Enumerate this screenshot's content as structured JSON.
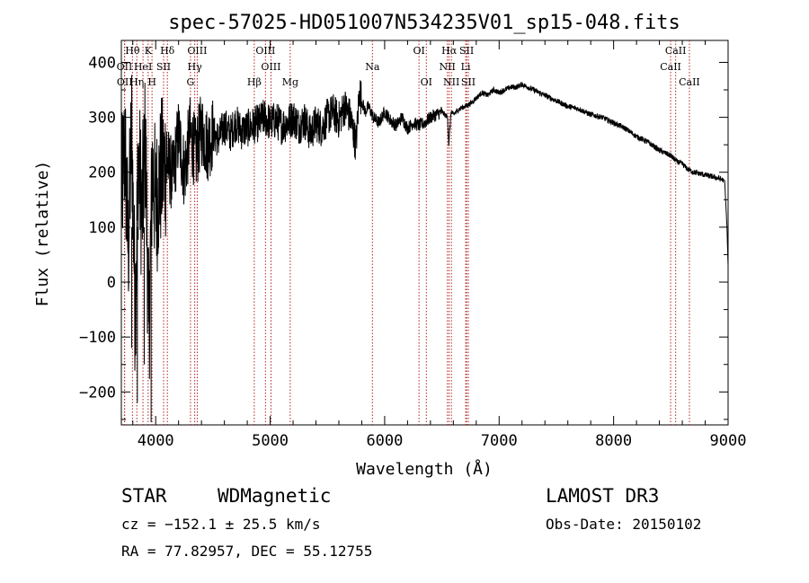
{
  "chart_data": {
    "type": "line",
    "title": "spec-57025-HD051007N534235V01_sp15-048.fits",
    "xlabel": "Wavelength (Å)",
    "ylabel": "Flux (relative)",
    "xlim": [
      3700,
      9000
    ],
    "ylim": [
      -260,
      440
    ],
    "xticks": [
      4000,
      5000,
      6000,
      7000,
      8000,
      9000
    ],
    "yticks": [
      -200,
      -100,
      0,
      100,
      200,
      300,
      400
    ],
    "series": [
      {
        "name": "spectrum",
        "x": [
          3700,
          3730,
          3760,
          3790,
          3820,
          3850,
          3880,
          3910,
          3940,
          3970,
          4000,
          4050,
          4100,
          4150,
          4200,
          4250,
          4300,
          4350,
          4400,
          4450,
          4500,
          4550,
          4600,
          4650,
          4700,
          4750,
          4800,
          4850,
          4900,
          4950,
          5000,
          5050,
          5100,
          5150,
          5200,
          5250,
          5300,
          5350,
          5400,
          5450,
          5500,
          5550,
          5600,
          5650,
          5700,
          5750,
          5780,
          5800,
          5830,
          5860,
          5900,
          5950,
          6000,
          6050,
          6100,
          6150,
          6200,
          6250,
          6300,
          6350,
          6400,
          6450,
          6500,
          6550,
          6560,
          6580,
          6600,
          6650,
          6700,
          6750,
          6800,
          6850,
          6900,
          6950,
          7000,
          7050,
          7100,
          7150,
          7200,
          7250,
          7300,
          7350,
          7400,
          7450,
          7500,
          7600,
          7700,
          7800,
          7900,
          8000,
          8100,
          8200,
          8300,
          8400,
          8500,
          8550,
          8600,
          8650,
          8700,
          8800,
          8900,
          8970,
          8990,
          9000
        ],
        "y": [
          150,
          250,
          60,
          280,
          -50,
          230,
          120,
          260,
          -100,
          210,
          140,
          200,
          220,
          190,
          270,
          200,
          270,
          230,
          280,
          250,
          270,
          260,
          285,
          270,
          290,
          275,
          280,
          285,
          290,
          300,
          290,
          295,
          285,
          290,
          300,
          285,
          295,
          270,
          290,
          280,
          300,
          310,
          295,
          320,
          300,
          250,
          350,
          330,
          310,
          320,
          300,
          290,
          310,
          295,
          285,
          300,
          280,
          290,
          285,
          290,
          300,
          305,
          310,
          300,
          250,
          310,
          305,
          315,
          320,
          325,
          335,
          345,
          340,
          350,
          345,
          350,
          355,
          355,
          360,
          355,
          350,
          345,
          340,
          335,
          330,
          320,
          315,
          305,
          300,
          290,
          280,
          265,
          255,
          240,
          230,
          220,
          215,
          205,
          200,
          195,
          190,
          185,
          100,
          30
        ]
      }
    ],
    "spectral_lines": [
      {
        "label": "Hθ",
        "wavelength": 3797,
        "row": 1
      },
      {
        "label": "K",
        "wavelength": 3934,
        "row": 1
      },
      {
        "label": "Hδ",
        "wavelength": 4102,
        "row": 1
      },
      {
        "label": "OIII",
        "wavelength": 4363,
        "row": 1
      },
      {
        "label": "OIII",
        "wavelength": 4959,
        "row": 1
      },
      {
        "label": "OI",
        "wavelength": 6300,
        "row": 1
      },
      {
        "label": "Hα",
        "wavelength": 6563,
        "row": 1
      },
      {
        "label": "SII",
        "wavelength": 6716,
        "row": 1
      },
      {
        "label": "CaII",
        "wavelength": 8542,
        "row": 1
      },
      {
        "label": "OII",
        "wavelength": 3727,
        "row": 2
      },
      {
        "label": "HeI",
        "wavelength": 3889,
        "row": 2
      },
      {
        "label": "SII",
        "wavelength": 4069,
        "row": 2
      },
      {
        "label": "Hγ",
        "wavelength": 4341,
        "row": 2
      },
      {
        "label": "OIII",
        "wavelength": 5007,
        "row": 2
      },
      {
        "label": "Na",
        "wavelength": 5893,
        "row": 2
      },
      {
        "label": "NII",
        "wavelength": 6548,
        "row": 2
      },
      {
        "label": "Li",
        "wavelength": 6708,
        "row": 2
      },
      {
        "label": "CaII",
        "wavelength": 8498,
        "row": 2
      },
      {
        "label": "OII",
        "wavelength": 3729,
        "row": 3
      },
      {
        "label": "Hη",
        "wavelength": 3835,
        "row": 3
      },
      {
        "label": "H",
        "wavelength": 3968,
        "row": 3
      },
      {
        "label": "G",
        "wavelength": 4304,
        "row": 3
      },
      {
        "label": "Hβ",
        "wavelength": 4861,
        "row": 3
      },
      {
        "label": "Mg",
        "wavelength": 5175,
        "row": 3
      },
      {
        "label": "OI",
        "wavelength": 6364,
        "row": 3
      },
      {
        "label": "NII",
        "wavelength": 6583,
        "row": 3
      },
      {
        "label": "SII",
        "wavelength": 6731,
        "row": 3
      },
      {
        "label": "CaII",
        "wavelength": 8662,
        "row": 3
      }
    ]
  },
  "info": {
    "class": "STAR",
    "subclass": "WDMagnetic",
    "survey": "LAMOST DR3",
    "cz": "cz = −152.1 ± 25.5 km/s",
    "obs_date": "Obs-Date: 20150102",
    "radec": "RA =  77.82957, DEC =  55.12755"
  }
}
